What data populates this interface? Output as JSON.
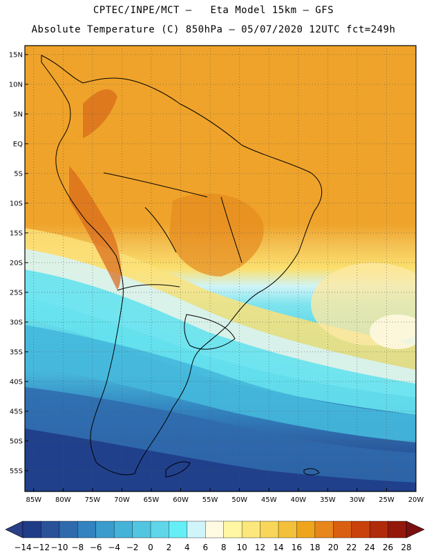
{
  "title_line1": "CPTEC/INPE/MCT –   Eta Model 15km – GFS",
  "title_line2": "Absolute Temperature (C) 850hPa – 05/07/2020 12UTC fct=249h",
  "lat_labels": [
    "15N",
    "10N",
    "5N",
    "EQ",
    "5S",
    "10S",
    "15S",
    "20S",
    "25S",
    "30S",
    "35S",
    "40S",
    "45S",
    "50S",
    "55S"
  ],
  "lat_values": [
    15,
    10,
    5,
    0,
    -5,
    -10,
    -15,
    -20,
    -25,
    -30,
    -35,
    -40,
    -45,
    -50,
    -55
  ],
  "lon_labels": [
    "85W",
    "80W",
    "75W",
    "70W",
    "65W",
    "60W",
    "55W",
    "50W",
    "45W",
    "40W",
    "35W",
    "30W",
    "25W",
    "20W"
  ],
  "lon_values": [
    -85,
    -80,
    -75,
    -70,
    -65,
    -60,
    -55,
    -50,
    -45,
    -40,
    -35,
    -30,
    -25,
    -20
  ],
  "extent": {
    "lon_min": -86.5,
    "lon_max": -20,
    "lat_min": -58.5,
    "lat_max": 16.5
  },
  "colorbar": {
    "labels": [
      "-14",
      "-12",
      "-10",
      "-8",
      "-6",
      "-4",
      "-2",
      "0",
      "2",
      "4",
      "6",
      "8",
      "10",
      "12",
      "14",
      "16",
      "18",
      "20",
      "22",
      "24",
      "26",
      "28"
    ],
    "under_color": "#2a3f88",
    "over_color": "#7a1010",
    "colors": [
      "#1f3c88",
      "#2a5298",
      "#2f6aad",
      "#3283bf",
      "#3a9ccd",
      "#45b2d8",
      "#52c5e1",
      "#5fd6ea",
      "#66eef6",
      "#cff5fb",
      "#fffbe3",
      "#fff7a3",
      "#fbe77c",
      "#f7d65a",
      "#f2c03a",
      "#eea51b",
      "#e7861b",
      "#db5f10",
      "#c9420c",
      "#b02b0a",
      "#93180a"
    ]
  }
}
